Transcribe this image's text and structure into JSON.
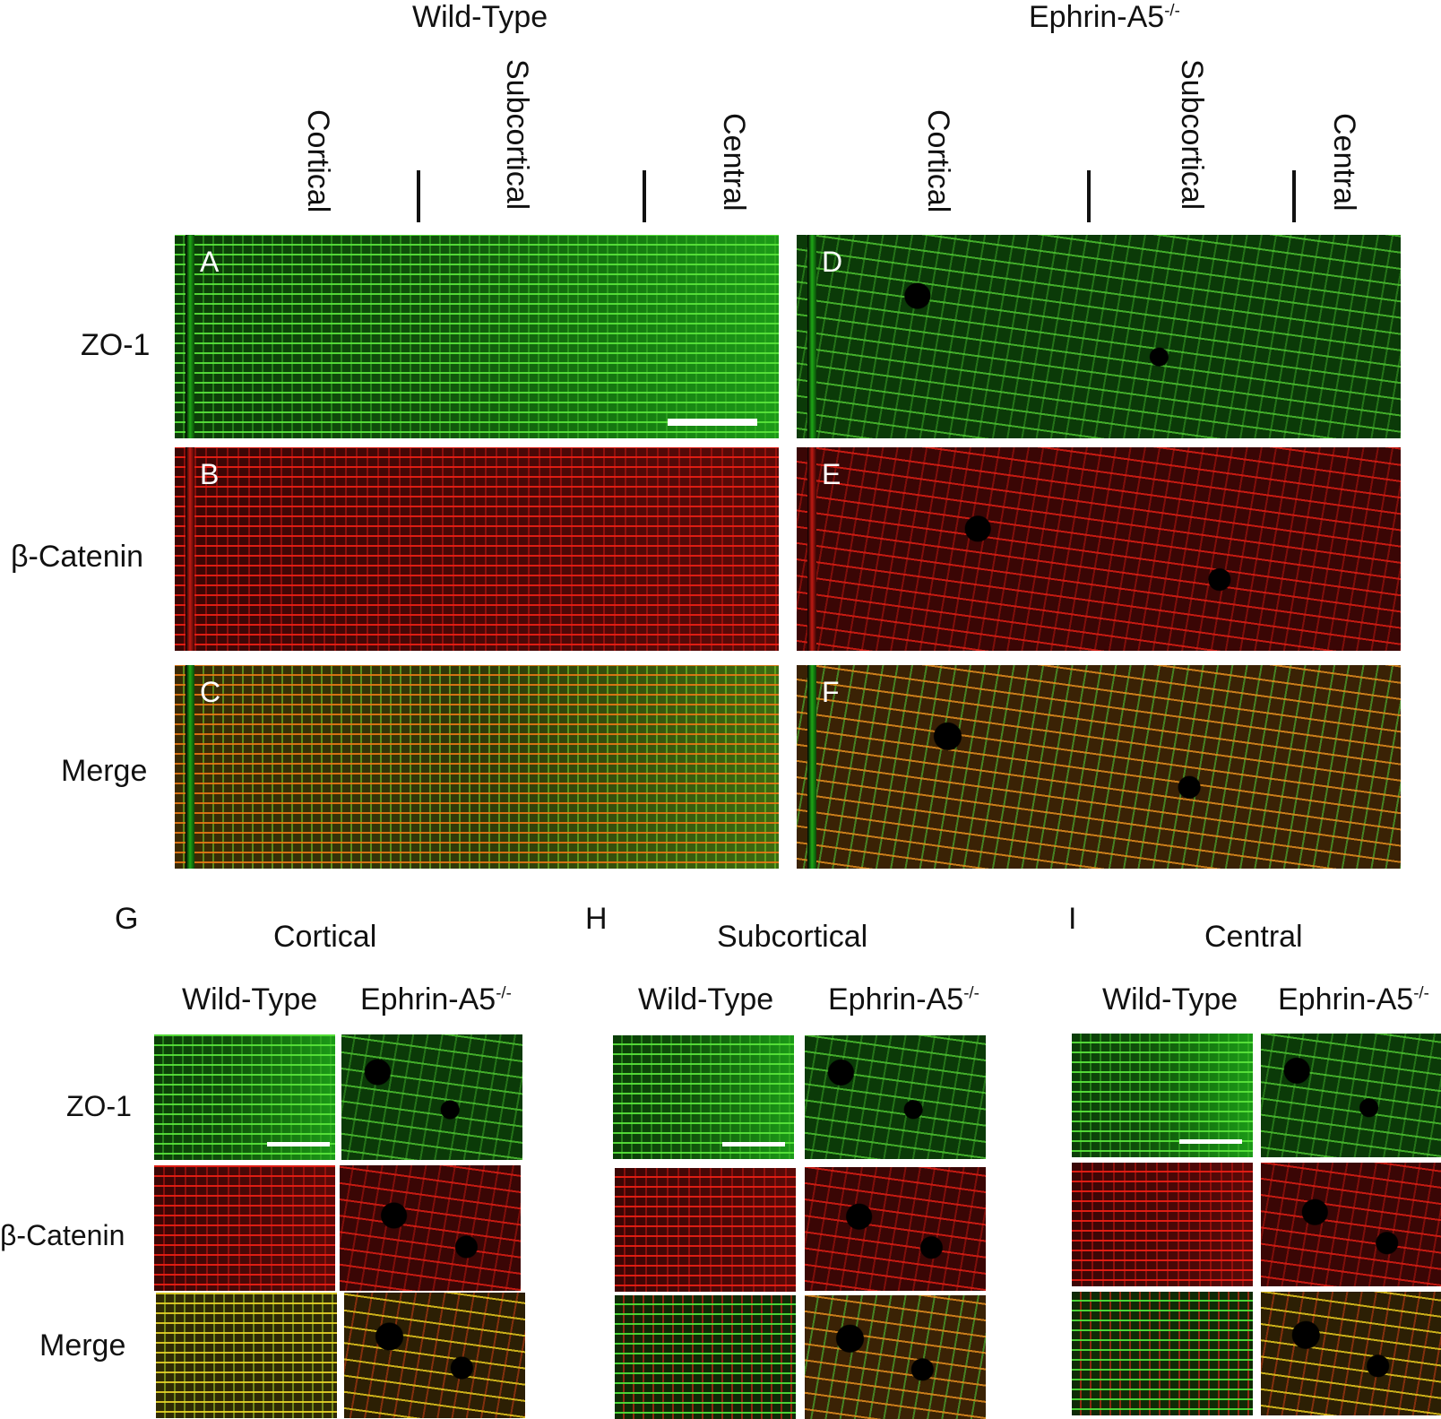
{
  "top": {
    "groups": [
      {
        "title": "Wild-Type",
        "sup": ""
      },
      {
        "title": "Ephrin-A5",
        "sup": "-/-"
      }
    ],
    "regions": [
      "Cortical",
      "Subcortical",
      "Central"
    ],
    "row_labels": [
      "ZO-1",
      "β-Catenin",
      "Merge"
    ],
    "panel_letters": [
      "A",
      "B",
      "C",
      "D",
      "E",
      "F"
    ]
  },
  "bottom": {
    "sections": [
      {
        "letter": "G",
        "title": "Cortical"
      },
      {
        "letter": "H",
        "title": "Subcortical"
      },
      {
        "letter": "I",
        "title": "Central"
      }
    ],
    "col_labels": [
      {
        "name": "Wild-Type",
        "sup": ""
      },
      {
        "name": "Ephrin-A5",
        "sup": "-/-"
      }
    ],
    "row_labels": [
      "ZO-1",
      "β-Catenin",
      "Merge"
    ]
  },
  "colors": {
    "zo1": "#2fd11f",
    "beta_catenin": "#e0201a",
    "merge_wt": "#d98a1a",
    "merge_yellow": "#d8c82a",
    "background": "#000000"
  }
}
